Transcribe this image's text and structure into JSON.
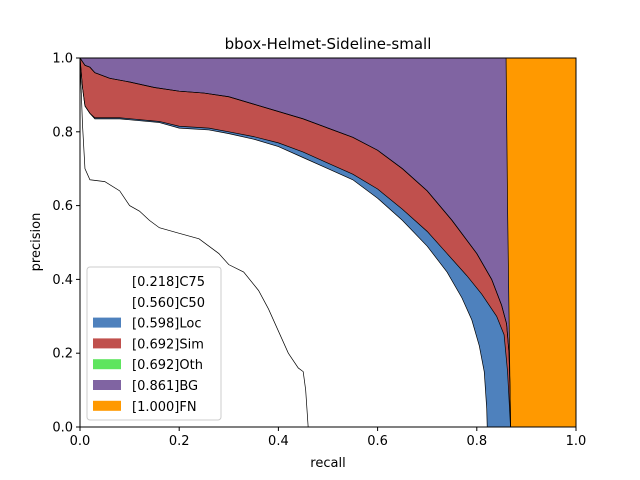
{
  "chart_data": {
    "type": "area",
    "title": "bbox-Helmet-Sideline-small",
    "xlabel": "recall",
    "ylabel": "precision",
    "xlim": [
      0,
      1
    ],
    "ylim": [
      0,
      1
    ],
    "xticks": [
      "0.0",
      "0.2",
      "0.4",
      "0.6",
      "0.8",
      "1.0"
    ],
    "yticks": [
      "0.0",
      "0.2",
      "0.4",
      "0.6",
      "0.8",
      "1.0"
    ],
    "grid": false,
    "legend_position": "lower-left",
    "series": [
      {
        "name": "[0.218]C75",
        "color": "#ffffff",
        "points": [
          [
            0,
            1.0
          ],
          [
            0.005,
            0.82
          ],
          [
            0.01,
            0.7
          ],
          [
            0.02,
            0.67
          ],
          [
            0.05,
            0.665
          ],
          [
            0.08,
            0.64
          ],
          [
            0.1,
            0.6
          ],
          [
            0.12,
            0.585
          ],
          [
            0.14,
            0.56
          ],
          [
            0.16,
            0.54
          ],
          [
            0.2,
            0.525
          ],
          [
            0.24,
            0.51
          ],
          [
            0.26,
            0.49
          ],
          [
            0.28,
            0.47
          ],
          [
            0.3,
            0.44
          ],
          [
            0.33,
            0.42
          ],
          [
            0.36,
            0.37
          ],
          [
            0.38,
            0.32
          ],
          [
            0.4,
            0.26
          ],
          [
            0.42,
            0.2
          ],
          [
            0.44,
            0.16
          ],
          [
            0.45,
            0.15
          ],
          [
            0.455,
            0.1
          ],
          [
            0.46,
            0.0
          ]
        ]
      },
      {
        "name": "[0.560]C50",
        "color": "#ffffff",
        "points": [
          [
            0,
            1.0
          ],
          [
            0.005,
            0.92
          ],
          [
            0.01,
            0.87
          ],
          [
            0.02,
            0.85
          ],
          [
            0.03,
            0.835
          ],
          [
            0.08,
            0.835
          ],
          [
            0.16,
            0.825
          ],
          [
            0.2,
            0.81
          ],
          [
            0.26,
            0.805
          ],
          [
            0.3,
            0.795
          ],
          [
            0.35,
            0.78
          ],
          [
            0.4,
            0.76
          ],
          [
            0.45,
            0.73
          ],
          [
            0.5,
            0.7
          ],
          [
            0.55,
            0.67
          ],
          [
            0.6,
            0.62
          ],
          [
            0.65,
            0.56
          ],
          [
            0.7,
            0.49
          ],
          [
            0.74,
            0.42
          ],
          [
            0.77,
            0.35
          ],
          [
            0.79,
            0.29
          ],
          [
            0.805,
            0.22
          ],
          [
            0.815,
            0.15
          ],
          [
            0.82,
            0.05
          ],
          [
            0.821,
            0.0
          ]
        ]
      },
      {
        "name": "[0.598]Loc",
        "color": "#4e81bd",
        "points": [
          [
            0,
            1.0
          ],
          [
            0.005,
            0.92
          ],
          [
            0.01,
            0.87
          ],
          [
            0.02,
            0.85
          ],
          [
            0.03,
            0.838
          ],
          [
            0.08,
            0.838
          ],
          [
            0.16,
            0.828
          ],
          [
            0.2,
            0.815
          ],
          [
            0.26,
            0.81
          ],
          [
            0.3,
            0.8
          ],
          [
            0.35,
            0.787
          ],
          [
            0.4,
            0.77
          ],
          [
            0.45,
            0.745
          ],
          [
            0.5,
            0.715
          ],
          [
            0.55,
            0.685
          ],
          [
            0.6,
            0.645
          ],
          [
            0.65,
            0.59
          ],
          [
            0.7,
            0.53
          ],
          [
            0.74,
            0.47
          ],
          [
            0.78,
            0.41
          ],
          [
            0.81,
            0.36
          ],
          [
            0.84,
            0.3
          ],
          [
            0.855,
            0.25
          ],
          [
            0.862,
            0.15
          ],
          [
            0.866,
            0.05
          ],
          [
            0.868,
            0.0
          ]
        ]
      },
      {
        "name": "[0.692]Sim",
        "color": "#c0504d",
        "points": [
          [
            0,
            1.0
          ],
          [
            0.005,
            0.99
          ],
          [
            0.01,
            0.98
          ],
          [
            0.02,
            0.975
          ],
          [
            0.03,
            0.96
          ],
          [
            0.06,
            0.945
          ],
          [
            0.1,
            0.935
          ],
          [
            0.15,
            0.92
          ],
          [
            0.2,
            0.91
          ],
          [
            0.25,
            0.905
          ],
          [
            0.3,
            0.895
          ],
          [
            0.35,
            0.875
          ],
          [
            0.4,
            0.855
          ],
          [
            0.45,
            0.835
          ],
          [
            0.5,
            0.81
          ],
          [
            0.55,
            0.785
          ],
          [
            0.6,
            0.75
          ],
          [
            0.65,
            0.7
          ],
          [
            0.7,
            0.64
          ],
          [
            0.75,
            0.56
          ],
          [
            0.8,
            0.47
          ],
          [
            0.83,
            0.4
          ],
          [
            0.85,
            0.33
          ],
          [
            0.86,
            0.28
          ],
          [
            0.865,
            0.2
          ],
          [
            0.867,
            0.1
          ],
          [
            0.868,
            0.0
          ]
        ]
      },
      {
        "name": "[0.692]Oth",
        "color": "#5ee55e",
        "points": [
          [
            0,
            1.0
          ],
          [
            0.005,
            0.99
          ],
          [
            0.01,
            0.98
          ],
          [
            0.02,
            0.975
          ],
          [
            0.03,
            0.96
          ],
          [
            0.06,
            0.945
          ],
          [
            0.1,
            0.935
          ],
          [
            0.15,
            0.92
          ],
          [
            0.2,
            0.91
          ],
          [
            0.25,
            0.905
          ],
          [
            0.3,
            0.895
          ],
          [
            0.35,
            0.875
          ],
          [
            0.4,
            0.855
          ],
          [
            0.45,
            0.835
          ],
          [
            0.5,
            0.81
          ],
          [
            0.55,
            0.785
          ],
          [
            0.6,
            0.75
          ],
          [
            0.65,
            0.7
          ],
          [
            0.7,
            0.64
          ],
          [
            0.75,
            0.56
          ],
          [
            0.8,
            0.47
          ],
          [
            0.83,
            0.4
          ],
          [
            0.85,
            0.33
          ],
          [
            0.86,
            0.28
          ],
          [
            0.865,
            0.2
          ],
          [
            0.867,
            0.1
          ],
          [
            0.868,
            0.0
          ]
        ]
      },
      {
        "name": "[0.861]BG",
        "color": "#8064a2",
        "points": [
          [
            0,
            1.0
          ],
          [
            0.859,
            1.0
          ],
          [
            0.862,
            0.6
          ],
          [
            0.865,
            0.3
          ],
          [
            0.868,
            0.0
          ]
        ]
      },
      {
        "name": "[1.000]FN",
        "color": "#ff9900",
        "points": [
          [
            0,
            1.0
          ],
          [
            1.0,
            1.0
          ],
          [
            1.0,
            0.0
          ]
        ]
      }
    ]
  }
}
